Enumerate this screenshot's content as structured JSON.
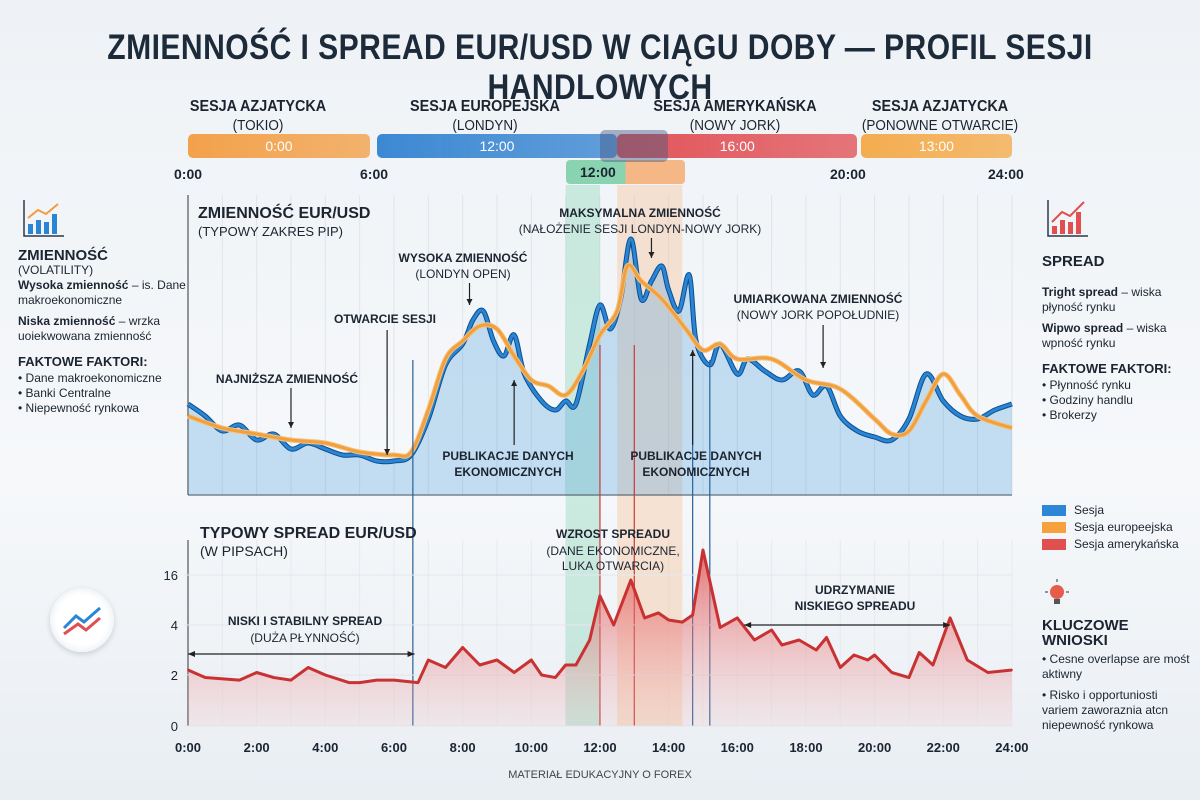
{
  "title": "ZMIENNOŚĆ I SPREAD EUR/USD W CIĄGU DOBY — PROFIL SESJI HANDLOWYCH",
  "sessions": [
    {
      "name": "SESJA AZJATYCKA",
      "sub": "(TOKIO)",
      "bar_label": "0:00",
      "color": "#f39a3c",
      "start": 0,
      "end": 5.3
    },
    {
      "name": "SESJA EUROPEJSKA",
      "sub": "(LONDYN)",
      "bar_label": "12:00",
      "color": "#2d7fd0",
      "start": 5.5,
      "end": 12.5
    },
    {
      "name": "SESJA AMERYKAŃSKA",
      "sub": "(NOWY JORK)",
      "bar_label": "16:00",
      "color": "#e0474c",
      "start": 12.5,
      "end": 19.5
    },
    {
      "name": "SESJA AZJATYCKA",
      "sub": "(PONOWNE OTWARCIE)",
      "bar_label": "13:00",
      "color": "#f5a640",
      "start": 19.6,
      "end": 24
    }
  ],
  "timeline_labels": [
    "0:00",
    "6:00",
    "20:00",
    "24:00"
  ],
  "overlap_label": "12:00",
  "left_panel": {
    "heading": "ZMIENNOŚĆ",
    "sub": "(VOLATILITY)",
    "high_b": "Wysoka zmienność",
    "high_t": " – is. Dane makroekonomiczne",
    "low_b": "Niska zmienność",
    "low_t": " – wrzka uoiekwowana zmienność",
    "factors_h": "FAKTOWE FAKTORI:",
    "factors": [
      "Dane makroekonomiczne",
      "Banki Centralne",
      "Niepewność rynkowa"
    ]
  },
  "right_panel": {
    "heading": "SPREAD",
    "tight_b": "Tright spread",
    "tight_t": " – wiska płyność rynku",
    "wide_b": "Wipwo spread",
    "wide_t": " – wiska wpność rynku",
    "factors_h": "FAKTOWE FAKTORI:",
    "factors": [
      "Płynność rynku",
      "Godziny handlu",
      "Brokerzy"
    ]
  },
  "legend": [
    {
      "label": "Sesja",
      "color": "#2d86d6"
    },
    {
      "label": "Sesja europeejska",
      "color": "#f5a23c"
    },
    {
      "label": "Sesja amerykańska",
      "color": "#e05050"
    }
  ],
  "takeaways": {
    "heading": "KLUCZOWE WNIOSKI",
    "items": [
      "Cesne overlapse are mośt aktiwny",
      "Risko i opportuniosti variem zaworaznia atcn niepewność rynkowa"
    ]
  },
  "footer": "MATERIAŁ EDUKACYJNY O FOREX",
  "chart_data": [
    {
      "type": "line",
      "title": "ZMIENNOŚĆ EUR/USD",
      "subtitle": "(TYPOWY ZAKRES PIP)",
      "xlim": [
        0,
        24
      ],
      "series": [
        {
          "color": "#2a86d4",
          "x": [
            0,
            0.5,
            1,
            1.5,
            2,
            2.5,
            3,
            3.5,
            4,
            4.5,
            5,
            5.5,
            6,
            6.5,
            7,
            7.5,
            8,
            8.3,
            8.6,
            8.9,
            9.2,
            9.5,
            9.8,
            10.3,
            10.7,
            11,
            11.3,
            11.7,
            12,
            12.3,
            12.6,
            12.9,
            13.2,
            13.5,
            13.8,
            14,
            14.3,
            14.6,
            14.8,
            15.2,
            15.5,
            16,
            16.3,
            16.8,
            17.3,
            17.8,
            18.2,
            18.6,
            19,
            19.5,
            20,
            20.5,
            21,
            21.5,
            22,
            22.5,
            23,
            23.5,
            24
          ],
          "values": [
            32,
            28,
            23,
            25,
            20,
            22,
            17,
            19,
            17,
            15,
            15,
            13,
            13,
            15,
            27,
            45,
            52,
            60,
            63,
            53,
            48,
            55,
            42,
            33,
            30,
            33,
            32,
            52,
            65,
            57,
            67,
            87,
            67,
            73,
            78,
            70,
            63,
            75,
            53,
            45,
            52,
            42,
            47,
            43,
            40,
            43,
            35,
            38,
            28,
            23,
            21,
            20,
            27,
            42,
            33,
            28,
            27,
            30,
            32
          ]
        },
        {
          "color": "#f0a040",
          "x": [
            0,
            1,
            2,
            3,
            4,
            5,
            6,
            6.5,
            7,
            7.5,
            8,
            8.5,
            9,
            9.5,
            10,
            10.5,
            11,
            11.5,
            12,
            12.5,
            12.8,
            13.2,
            13.8,
            14.5,
            15,
            15.5,
            16,
            17,
            18,
            19,
            20,
            20.5,
            21,
            21.5,
            22,
            22.5,
            23,
            24
          ],
          "values": [
            28,
            24,
            22,
            20,
            19,
            16,
            15,
            16,
            30,
            47,
            53,
            58,
            57,
            48,
            40,
            38,
            35,
            43,
            55,
            63,
            78,
            73,
            67,
            57,
            50,
            52,
            47,
            47,
            40,
            37,
            27,
            22,
            23,
            33,
            42,
            35,
            28,
            24
          ]
        }
      ],
      "annotations": [
        {
          "text": "NAJNIŻSZA ZMIENNOŚĆ",
          "sub": "",
          "x": 3
        },
        {
          "text": "OTWARCIE SESJI",
          "sub": "",
          "x": 5.8
        },
        {
          "text": "WYSOKA ZMIENNOŚĆ",
          "sub": "(LONDYN OPEN)",
          "x": 8.2
        },
        {
          "text": "PUBLIKACJE DANYCH",
          "sub": "EKONOMICZNYCH",
          "x": 9.5
        },
        {
          "text": "MAKSYMALNA ZMIENNOŚĆ",
          "sub": "(NAŁOŻENIE SESJI LONDYN-NOWY JORK)",
          "x": 13.5
        },
        {
          "text": "PUBLIKACJE DANYCH",
          "sub": "EKONOMICZNYCH",
          "x": 14.7
        },
        {
          "text": "UMIARKOWANA ZMIENNOŚĆ",
          "sub": "(NOWY JORK POPOŁUDNIE)",
          "x": 18.5
        }
      ],
      "bands": [
        {
          "from": 11,
          "to": 12,
          "color": "#7fd1b0"
        },
        {
          "from": 12.5,
          "to": 14.4,
          "color": "#f9b98a"
        }
      ],
      "markers": [
        {
          "x": 6.55,
          "color": "#2a5f9a"
        },
        {
          "x": 12,
          "color": "#c83a3a"
        },
        {
          "x": 13,
          "color": "#c83a3a"
        },
        {
          "x": 14.7,
          "color": "#2a5f9a"
        },
        {
          "x": 15.2,
          "color": "#2a5f9a"
        }
      ]
    },
    {
      "type": "area",
      "title": "TYPOWY SPREAD EUR/USD",
      "subtitle": "(W PIPSACH)",
      "xlim": [
        0,
        24
      ],
      "x_ticks": [
        "0:00",
        "2:00",
        "4:00",
        "6:00",
        "8:00",
        "10:00",
        "12:00",
        "14:00",
        "16:00",
        "18:00",
        "20:00",
        "22:00",
        "24:00"
      ],
      "y_ticks": [
        0,
        2,
        4,
        16
      ],
      "color": "#e04848",
      "x": [
        0,
        0.5,
        1.5,
        2,
        2.5,
        3,
        3.5,
        4,
        4.7,
        5,
        5.5,
        6,
        6.7,
        7,
        7.5,
        8,
        8.5,
        9,
        9.5,
        10,
        10.3,
        10.7,
        11,
        11.3,
        11.7,
        12,
        12.4,
        12.9,
        13.3,
        13.7,
        14,
        14.4,
        14.7,
        15,
        15.5,
        16,
        16.5,
        17,
        17.3,
        17.8,
        18.3,
        18.6,
        19,
        19.4,
        19.8,
        20,
        20.5,
        21,
        21.3,
        21.7,
        22.2,
        22.7,
        23.3,
        24
      ],
      "values": [
        2.2,
        1.9,
        1.8,
        2.1,
        1.9,
        1.8,
        2.3,
        2.0,
        1.7,
        1.7,
        1.8,
        1.8,
        1.7,
        2.6,
        2.3,
        3.1,
        2.4,
        2.6,
        2.1,
        2.6,
        2.0,
        1.9,
        2.4,
        2.4,
        3.4,
        11,
        4.0,
        14.8,
        5.7,
        6.9,
        5.2,
        4.7,
        6.4,
        22,
        3.9,
        5.7,
        3.4,
        3.8,
        3.2,
        3.4,
        3.0,
        3.5,
        2.3,
        2.8,
        2.6,
        2.8,
        2.1,
        1.9,
        2.9,
        2.4,
        5.7,
        2.6,
        2.1,
        2.2
      ],
      "annotations": [
        {
          "text": "NISKI I STABILNY SPREAD",
          "sub": "(DUŻA PŁYNNOŚĆ)",
          "from": 0,
          "to": 6.6
        },
        {
          "text": "WZROST SPREADU",
          "sub": "(DANE EKONOMICZNE,",
          "sub2": "LUKA OTWARCIA)"
        },
        {
          "text": "UDRZYMANIE",
          "sub": "NISKIEGO SPREADU",
          "from": 16.2,
          "to": 22.2
        }
      ]
    }
  ]
}
